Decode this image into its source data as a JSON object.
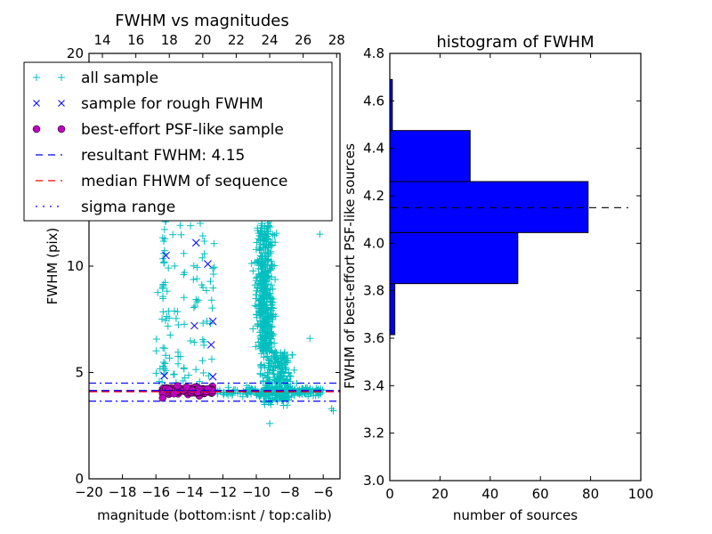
{
  "chart_data": [
    {
      "type": "scatter",
      "title": "FWHM vs magnitudes",
      "xlabel": "magnitude (bottom:isnt / top:calib)",
      "ylabel": "FWHM (pix)",
      "xlim": [
        -20,
        -5
      ],
      "ylim": [
        0,
        20
      ],
      "xticks": [
        "−20",
        "−18",
        "−16",
        "−14",
        "−12",
        "−10",
        "−8",
        "−6"
      ],
      "xtick_values": [
        -20,
        -18,
        -16,
        -14,
        -12,
        -10,
        -8,
        -6
      ],
      "yticks": [
        "0",
        "5",
        "10",
        "20"
      ],
      "ytick_values": [
        0,
        5,
        10,
        20
      ],
      "top_xlim": [
        13.2,
        28.2
      ],
      "top_xticks": [
        "14",
        "16",
        "18",
        "20",
        "22",
        "24",
        "26",
        "28"
      ],
      "top_xtick_values": [
        14,
        16,
        18,
        20,
        22,
        24,
        26,
        28
      ],
      "legend_position": "upper-left",
      "legend": [
        {
          "label": "all sample",
          "marker": "plus",
          "color": "#00bfbf"
        },
        {
          "label": "sample for rough FWHM",
          "marker": "x",
          "color": "#0000ff"
        },
        {
          "label": "best-effort PSF-like sample",
          "marker": "circle",
          "color": "#bf00bf"
        },
        {
          "label": "resultant FWHM: 4.15",
          "marker": "dash",
          "color": "#0000ff"
        },
        {
          "label": "median FHWM of sequence",
          "marker": "dash",
          "color": "#ff0000"
        },
        {
          "label": "sigma range",
          "marker": "dashdot",
          "color": "#0000ff"
        }
      ],
      "resultant_fwhm": 4.15,
      "median_fwhm": 4.1,
      "sigma_range": [
        3.65,
        4.5
      ],
      "rough_sample": [
        {
          "x": -15.4,
          "y": 10.5
        },
        {
          "x": -13.6,
          "y": 11.1
        },
        {
          "x": -12.9,
          "y": 10.1
        },
        {
          "x": -13.7,
          "y": 7.2
        },
        {
          "x": -12.6,
          "y": 7.4
        },
        {
          "x": -12.7,
          "y": 6.3
        },
        {
          "x": -15.5,
          "y": 4.85
        },
        {
          "x": -12.6,
          "y": 4.8
        }
      ],
      "psf_sample_range": {
        "x": [
          -15.6,
          -12.6
        ],
        "y": [
          3.8,
          4.5
        ]
      },
      "all_sample_regions": [
        {
          "x": [
            -16,
            -12.5
          ],
          "y": [
            4.5,
            20
          ],
          "count": 120
        },
        {
          "x": [
            -11,
            -7
          ],
          "y": [
            3.5,
            20
          ],
          "count": 700
        },
        {
          "x": [
            -12.5,
            -6
          ],
          "y": [
            3.6,
            4.5
          ],
          "count": 200
        }
      ]
    },
    {
      "type": "bar",
      "orientation": "horizontal",
      "title": "histogram of FWHM",
      "xlabel": "number of sources",
      "ylabel": "FWHM of best-effort PSF-like sources",
      "xlim": [
        0,
        100
      ],
      "ylim": [
        3.0,
        4.8
      ],
      "xticks": [
        "0",
        "20",
        "40",
        "60",
        "80",
        "100"
      ],
      "xtick_values": [
        0,
        20,
        40,
        60,
        80,
        100
      ],
      "yticks": [
        "3.0",
        "3.2",
        "3.4",
        "3.6",
        "3.8",
        "4.0",
        "4.2",
        "4.4",
        "4.6",
        "4.8"
      ],
      "ytick_values": [
        3.0,
        3.2,
        3.4,
        3.6,
        3.8,
        4.0,
        4.2,
        4.4,
        4.6,
        4.8
      ],
      "bins": [
        {
          "low": 3.615,
          "high": 3.83,
          "count": 2
        },
        {
          "low": 3.83,
          "high": 4.045,
          "count": 51
        },
        {
          "low": 4.045,
          "high": 4.26,
          "count": 79
        },
        {
          "low": 4.26,
          "high": 4.475,
          "count": 32
        },
        {
          "low": 4.475,
          "high": 4.69,
          "count": 1
        }
      ],
      "reference_line": {
        "y": 4.15,
        "x_extent": [
          0,
          95
        ],
        "style": "dashed",
        "color": "#000000"
      }
    }
  ],
  "colors": {
    "all_sample": "#00bfbf",
    "rough": "#0000ff",
    "psf": "#bf00bf",
    "median": "#ff0000",
    "bar_fill": "#0000ff"
  }
}
